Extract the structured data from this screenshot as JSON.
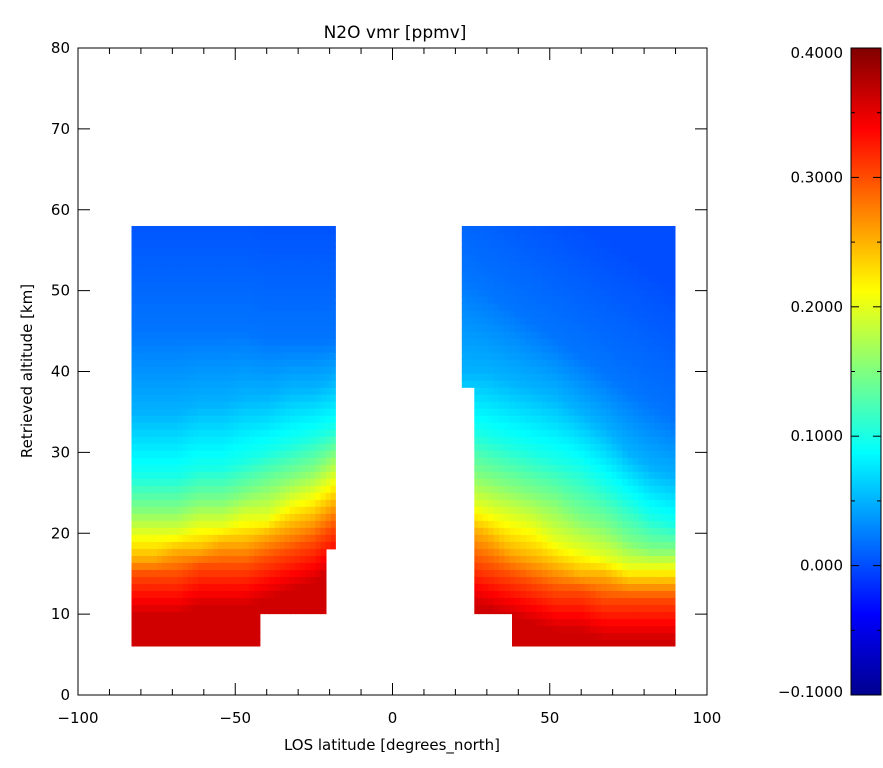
{
  "chart_data": {
    "type": "heatmap",
    "title": "N2O vmr [ppmv]",
    "xlabel": "LOS latitude [degrees_north]",
    "ylabel": "Retrieved altitude [km]",
    "xlim": [
      -100,
      100
    ],
    "ylim": [
      0,
      80
    ],
    "x_ticks": [
      -100,
      -50,
      0,
      50,
      100
    ],
    "y_ticks": [
      0,
      10,
      20,
      30,
      40,
      50,
      60,
      70,
      80
    ],
    "grid": false,
    "colormap": "rainbow",
    "colorbar": {
      "range": [
        -0.1,
        0.4
      ],
      "tick_values": [
        -0.1,
        0.0,
        0.1,
        0.2,
        0.3,
        0.4
      ],
      "tick_labels": [
        "−0.1000",
        "0.000",
        "0.1000",
        "0.2000",
        "0.3000",
        "0.4000"
      ],
      "placement": "right"
    },
    "regions": [
      {
        "name": "southern",
        "outline": [
          [
            -83,
            6
          ],
          [
            -83,
            58
          ],
          [
            -18,
            58
          ],
          [
            -18,
            18
          ],
          [
            -21,
            18
          ],
          [
            -21,
            10
          ],
          [
            -42,
            10
          ],
          [
            -42,
            6
          ]
        ],
        "contour_altitudes": [
          {
            "value": 0.3,
            "alt": [
              15,
              15,
              15,
              16,
              16,
              16,
              17,
              18,
              19,
              21
            ]
          },
          {
            "value": 0.25,
            "alt": [
              17,
              17,
              18,
              18,
              19,
              19,
              20,
              21,
              22,
              24
            ]
          },
          {
            "value": 0.2,
            "alt": [
              20,
              20,
              20,
              21,
              21,
              22,
              22,
              24,
              25,
              27
            ]
          },
          {
            "value": 0.15,
            "alt": [
              23,
              23,
              23,
              24,
              24,
              25,
              26,
              27,
              28,
              30
            ]
          },
          {
            "value": 0.1,
            "alt": [
              27,
              27,
              27,
              28,
              28,
              29,
              30,
              31,
              32,
              33
            ]
          },
          {
            "value": 0.05,
            "alt": [
              35,
              35,
              35,
              36,
              36,
              37,
              37,
              38,
              38,
              39
            ]
          },
          {
            "value": 0.02,
            "alt": [
              45,
              45,
              45,
              45,
              45,
              45,
              44,
              44,
              44,
              44
            ]
          }
        ]
      },
      {
        "name": "northern",
        "outline": [
          [
            22,
            38
          ],
          [
            22,
            58
          ],
          [
            90,
            58
          ],
          [
            90,
            6
          ],
          [
            38,
            6
          ],
          [
            38,
            10
          ],
          [
            26,
            10
          ],
          [
            26,
            38
          ]
        ],
        "contour_altitudes": [
          {
            "value": 0.3,
            "alt": [
              17,
              16,
              15,
              14,
              13,
              13,
              12,
              12,
              12,
              12
            ]
          },
          {
            "value": 0.25,
            "alt": [
              21,
              20,
              18,
              17,
              16,
              15,
              15,
              14,
              14,
              14
            ]
          },
          {
            "value": 0.2,
            "alt": [
              24,
              23,
              22,
              21,
              19,
              18,
              17,
              16,
              16,
              16
            ]
          },
          {
            "value": 0.15,
            "alt": [
              28,
              27,
              26,
              25,
              24,
              22,
              21,
              19,
              18,
              18
            ]
          },
          {
            "value": 0.1,
            "alt": [
              33,
              32,
              31,
              30,
              29,
              28,
              26,
              24,
              22,
              21
            ]
          },
          {
            "value": 0.05,
            "alt": [
              40,
              40,
              39,
              38,
              37,
              35,
              33,
              30,
              28,
              27
            ]
          },
          {
            "value": 0.02,
            "alt": [
              52,
              50,
              48,
              46,
              44,
              42,
              40,
              38,
              36,
              34
            ]
          }
        ]
      }
    ]
  }
}
